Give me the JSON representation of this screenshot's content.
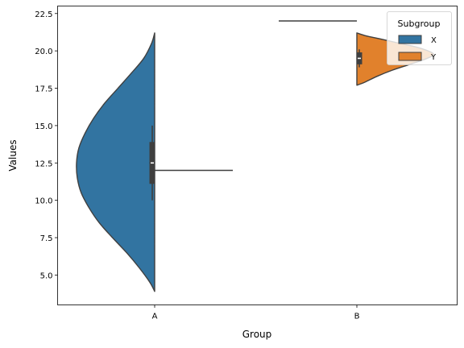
{
  "chart_data": {
    "type": "violin",
    "split": true,
    "xlabel": "Group",
    "ylabel": "Values",
    "categories": [
      "A",
      "B"
    ],
    "ylim": [
      3.0,
      23.0
    ],
    "yticks": [
      5.0,
      7.5,
      10.0,
      12.5,
      15.0,
      17.5,
      20.0,
      22.5
    ],
    "ytick_labels": [
      "5.0",
      "7.5",
      "10.0",
      "12.5",
      "15.0",
      "17.5",
      "20.0",
      "22.5"
    ],
    "legend": {
      "title": "Subgroup",
      "placement": "top-right",
      "entries": [
        {
          "label": "X",
          "color": "#3274a1"
        },
        {
          "label": "Y",
          "color": "#e1812c"
        }
      ]
    },
    "violins": [
      {
        "category": "A",
        "subgroup": "X",
        "side": "left",
        "color": "#3274a1",
        "y_range": [
          3.9,
          21.2
        ],
        "profile": [
          [
            3.9,
            0.0
          ],
          [
            4.5,
            0.06
          ],
          [
            5.5,
            0.2
          ],
          [
            6.5,
            0.36
          ],
          [
            7.5,
            0.54
          ],
          [
            8.5,
            0.71
          ],
          [
            9.5,
            0.84
          ],
          [
            10.5,
            0.94
          ],
          [
            11.5,
            0.99
          ],
          [
            12.5,
            1.0
          ],
          [
            13.5,
            0.97
          ],
          [
            14.5,
            0.89
          ],
          [
            15.5,
            0.78
          ],
          [
            16.5,
            0.64
          ],
          [
            17.5,
            0.47
          ],
          [
            18.5,
            0.3
          ],
          [
            19.5,
            0.14
          ],
          [
            20.5,
            0.04
          ],
          [
            21.2,
            0.0
          ]
        ],
        "box": {
          "q1": 11.1,
          "median": 12.5,
          "q3": 13.9,
          "whisker_low": 10.0,
          "whisker_high": 15.0
        }
      },
      {
        "category": "A",
        "subgroup": "Y",
        "side": "right",
        "color": "#e1812c",
        "degenerate_value": 12.0
      },
      {
        "category": "B",
        "subgroup": "X",
        "side": "left",
        "color": "#3274a1",
        "degenerate_value": 22.0
      },
      {
        "category": "B",
        "subgroup": "Y",
        "side": "right",
        "color": "#e1812c",
        "y_range": [
          17.7,
          21.2
        ],
        "profile": [
          [
            17.7,
            0.0
          ],
          [
            17.9,
            0.1
          ],
          [
            18.3,
            0.26
          ],
          [
            18.7,
            0.45
          ],
          [
            19.1,
            0.68
          ],
          [
            19.5,
            0.9
          ],
          [
            19.8,
            0.98
          ],
          [
            20.2,
            0.8
          ],
          [
            20.5,
            0.55
          ],
          [
            20.8,
            0.3
          ],
          [
            21.0,
            0.12
          ],
          [
            21.2,
            0.0
          ]
        ],
        "box": {
          "q1": 19.1,
          "median": 19.5,
          "q3": 19.9,
          "whisker_low": 18.9,
          "whisker_high": 20.1
        }
      }
    ]
  }
}
